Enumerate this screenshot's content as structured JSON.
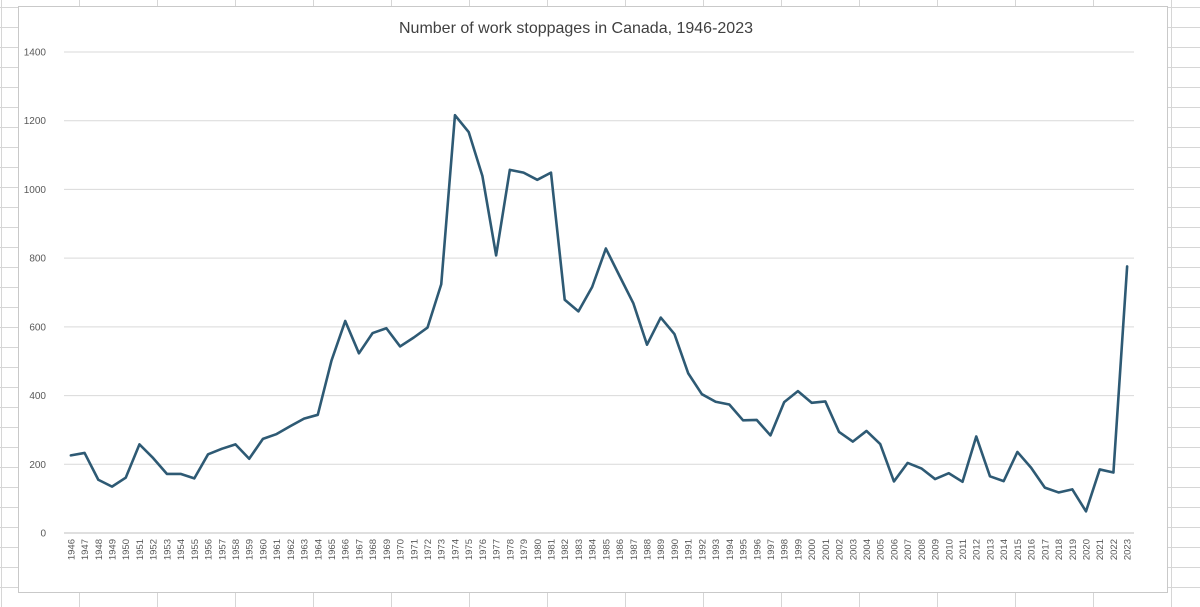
{
  "chart_data": {
    "type": "line",
    "title": "Number of work stoppages in Canada, 1946-2023",
    "xlabel": "",
    "ylabel": "",
    "ylim": [
      0,
      1400
    ],
    "yticks": [
      0,
      200,
      400,
      600,
      800,
      1000,
      1200,
      1400
    ],
    "grid": true,
    "legend": "none",
    "line_color": "#2e5a74",
    "categories": [
      "1946",
      "1947",
      "1948",
      "1949",
      "1950",
      "1951",
      "1952",
      "1953",
      "1954",
      "1955",
      "1956",
      "1957",
      "1958",
      "1959",
      "1960",
      "1961",
      "1962",
      "1963",
      "1964",
      "1965",
      "1966",
      "1967",
      "1968",
      "1969",
      "1970",
      "1971",
      "1972",
      "1973",
      "1974",
      "1975",
      "1976",
      "1977",
      "1978",
      "1979",
      "1980",
      "1981",
      "1982",
      "1983",
      "1984",
      "1985",
      "1986",
      "1987",
      "1988",
      "1989",
      "1990",
      "1991",
      "1992",
      "1993",
      "1994",
      "1995",
      "1996",
      "1997",
      "1998",
      "1999",
      "2000",
      "2001",
      "2002",
      "2003",
      "2004",
      "2005",
      "2006",
      "2007",
      "2008",
      "2009",
      "2010",
      "2011",
      "2012",
      "2013",
      "2014",
      "2015",
      "2016",
      "2017",
      "2018",
      "2019",
      "2020",
      "2021",
      "2022",
      "2023"
    ],
    "series": [
      {
        "values": [
          226,
          233,
          155,
          135,
          161,
          258,
          218,
          172,
          172,
          159,
          229,
          245,
          258,
          216,
          274,
          288,
          311,
          333,
          344,
          502,
          617,
          523,
          582,
          596,
          543,
          569,
          598,
          724,
          1216,
          1167,
          1039,
          808,
          1057,
          1049,
          1028,
          1049,
          679,
          645,
          716,
          828,
          748,
          669,
          548,
          627,
          579,
          465,
          404,
          382,
          374,
          328,
          329,
          284,
          381,
          413,
          379,
          383,
          294,
          266,
          297,
          259,
          150,
          204,
          188,
          157,
          174,
          149,
          281,
          165,
          151,
          236,
          190,
          132,
          118,
          127,
          63,
          185,
          176,
          776
        ]
      }
    ]
  }
}
